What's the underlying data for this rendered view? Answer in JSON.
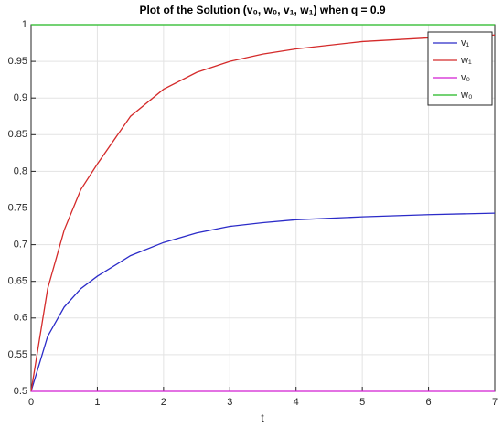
{
  "chart_data": {
    "type": "line",
    "title": "Plot of the Solution (v₀, w₀, v₁, w₁) when q = 0.9",
    "x_label": "t",
    "x": [
      0,
      0.25,
      0.5,
      0.75,
      1,
      1.5,
      2,
      2.5,
      3,
      3.5,
      4,
      5,
      6,
      7
    ],
    "series": [
      {
        "name": "v₁",
        "color": "#2b2bc8",
        "values": [
          0.5,
          0.575,
          0.615,
          0.64,
          0.657,
          0.685,
          0.703,
          0.716,
          0.725,
          0.73,
          0.734,
          0.738,
          0.741,
          0.743
        ]
      },
      {
        "name": "w₁",
        "color": "#d42a2a",
        "values": [
          0.5,
          0.64,
          0.72,
          0.775,
          0.81,
          0.875,
          0.912,
          0.935,
          0.95,
          0.96,
          0.967,
          0.977,
          0.982,
          0.986
        ]
      },
      {
        "name": "v₀",
        "color": "#d21ed2",
        "values": [
          0.5,
          0.5,
          0.5,
          0.5,
          0.5,
          0.5,
          0.5,
          0.5,
          0.5,
          0.5,
          0.5,
          0.5,
          0.5,
          0.5
        ]
      },
      {
        "name": "w₀",
        "color": "#22b822",
        "values": [
          1,
          1,
          1,
          1,
          1,
          1,
          1,
          1,
          1,
          1,
          1,
          1,
          1,
          1
        ]
      }
    ],
    "xlim": [
      0,
      7
    ],
    "xticks": [
      0,
      1,
      2,
      3,
      4,
      5,
      6,
      7
    ],
    "ylim": [
      0.5,
      1
    ],
    "yticks": [
      0.5,
      0.55,
      0.6,
      0.65,
      0.7,
      0.75,
      0.8,
      0.85,
      0.9,
      0.95,
      1
    ],
    "grid": true,
    "legend": "northeast"
  }
}
